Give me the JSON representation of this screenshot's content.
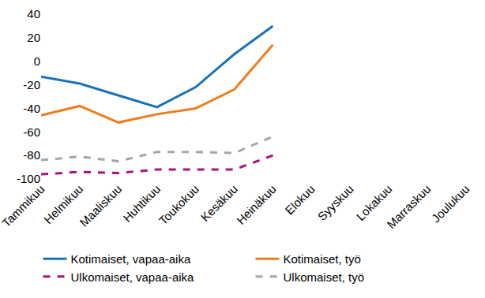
{
  "chart_data": {
    "type": "line",
    "categories": [
      "Tammikuu",
      "Helmikuu",
      "Maaliskuu",
      "Huhtikuu",
      "Toukokuu",
      "Kesäkuu",
      "Heinäkuu",
      "Elokuu",
      "Syyskuu",
      "Lokakuu",
      "Marraskuu",
      "Joulukuu"
    ],
    "series": [
      {
        "name": "Kotimaiset, vapaa-aika",
        "color": "#1a72b8",
        "line_style": "solid",
        "values": [
          -13,
          -19,
          -29,
          -39,
          -22,
          6,
          30,
          null,
          null,
          null,
          null,
          null
        ]
      },
      {
        "name": "Kotimaiset, työ",
        "color": "#ef7d1a",
        "line_style": "solid",
        "values": [
          -46,
          -38,
          -52,
          -45,
          -40,
          -24,
          14,
          null,
          null,
          null,
          null,
          null
        ]
      },
      {
        "name": "Ulkomaiset, vapaa-aika",
        "color": "#a3157f",
        "line_style": "dash",
        "values": [
          -96,
          -94,
          -95,
          -92,
          -92,
          -92,
          -80,
          null,
          null,
          null,
          null,
          null
        ]
      },
      {
        "name": "Ulkomaiset, työ",
        "color": "#a6a6a6",
        "line_style": "dash",
        "values": [
          -84,
          -81,
          -85,
          -77,
          -77,
          -78,
          -64,
          null,
          null,
          null,
          null,
          null
        ]
      }
    ],
    "ylim": [
      -100,
      40
    ],
    "yticks": [
      -100,
      -80,
      -60,
      -40,
      -20,
      0,
      20,
      40
    ],
    "grid": false,
    "legend": "bottom"
  }
}
